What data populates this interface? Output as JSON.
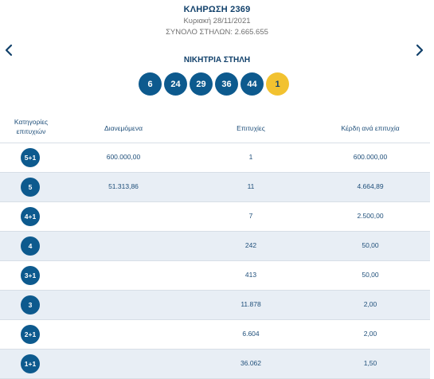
{
  "draw": {
    "title": "ΚΛΗΡΩΣΗ 2369",
    "date": "Κυριακή 28/11/2021",
    "columns": "ΣΥΝΟΛΟ ΣΤΗΛΩΝ: 2.665.655"
  },
  "icons": {
    "prev": "chevron-left-icon",
    "next": "chevron-right-icon"
  },
  "winning": {
    "title": "ΝΙΚΗΤΡΙΑ ΣΤΗΛΗ",
    "numbers": [
      "6",
      "24",
      "29",
      "36",
      "44"
    ],
    "joker": "1"
  },
  "colors": {
    "ball": "#0d5a8e",
    "joker": "#f2c230",
    "row_shade": "#e8eef5",
    "text": "#1f4f7a"
  },
  "table": {
    "headers": {
      "category_line1": "Κατηγορίες",
      "category_line2": "επιτυχιών",
      "distributed": "Διανεμόμενα",
      "wins": "Επιτυχίες",
      "prize": "Κέρδη ανά επιτυχία"
    },
    "rows": [
      {
        "category": "5+1",
        "distributed": "600.000,00",
        "wins": "1",
        "prize": "600.000,00"
      },
      {
        "category": "5",
        "distributed": "51.313,86",
        "wins": "11",
        "prize": "4.664,89"
      },
      {
        "category": "4+1",
        "distributed": "",
        "wins": "7",
        "prize": "2.500,00"
      },
      {
        "category": "4",
        "distributed": "",
        "wins": "242",
        "prize": "50,00"
      },
      {
        "category": "3+1",
        "distributed": "",
        "wins": "413",
        "prize": "50,00"
      },
      {
        "category": "3",
        "distributed": "",
        "wins": "11.878",
        "prize": "2,00"
      },
      {
        "category": "2+1",
        "distributed": "",
        "wins": "6.604",
        "prize": "2,00"
      },
      {
        "category": "1+1",
        "distributed": "",
        "wins": "36.062",
        "prize": "1,50"
      }
    ]
  }
}
